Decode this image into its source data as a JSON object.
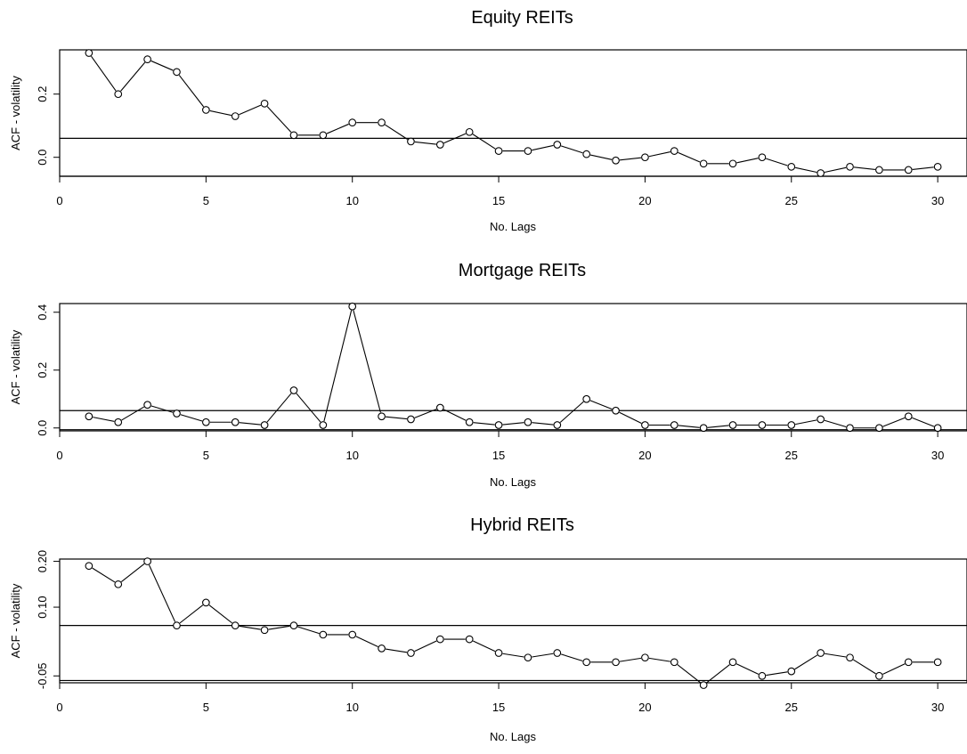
{
  "chart_data": [
    {
      "type": "line",
      "title": "Equity REITs",
      "xlabel": "No. Lags",
      "ylabel": "ACF - volatility",
      "x": [
        1,
        2,
        3,
        4,
        5,
        6,
        7,
        8,
        9,
        10,
        11,
        12,
        13,
        14,
        15,
        16,
        17,
        18,
        19,
        20,
        21,
        22,
        23,
        24,
        25,
        26,
        27,
        28,
        29,
        30
      ],
      "values": [
        0.33,
        0.2,
        0.31,
        0.27,
        0.15,
        0.13,
        0.17,
        0.07,
        0.07,
        0.11,
        0.11,
        0.05,
        0.04,
        0.08,
        0.02,
        0.02,
        0.04,
        0.01,
        -0.01,
        0.0,
        0.02,
        -0.02,
        -0.02,
        0.0,
        -0.03,
        -0.05,
        -0.03,
        -0.04,
        -0.04,
        -0.03
      ],
      "reference_lines": [
        0.06,
        -0.06
      ],
      "xlim": [
        0,
        31
      ],
      "ylim": [
        -0.06,
        0.34
      ],
      "xticks": [
        "0",
        "5",
        "10",
        "15",
        "20",
        "25",
        "30"
      ],
      "yticks": [
        "0.0",
        "0.2"
      ],
      "grid": false,
      "marker": "open-circle"
    },
    {
      "type": "line",
      "title": "Mortgage REITs",
      "xlabel": "No. Lags",
      "ylabel": "ACF - volatility",
      "x": [
        1,
        2,
        3,
        4,
        5,
        6,
        7,
        8,
        9,
        10,
        11,
        12,
        13,
        14,
        15,
        16,
        17,
        18,
        19,
        20,
        21,
        22,
        23,
        24,
        25,
        26,
        27,
        28,
        29,
        30
      ],
      "values": [
        0.04,
        0.02,
        0.08,
        0.05,
        0.02,
        0.02,
        0.01,
        0.13,
        0.01,
        0.42,
        0.04,
        0.03,
        0.07,
        0.02,
        0.01,
        0.02,
        0.01,
        0.1,
        0.06,
        0.01,
        0.01,
        0.0,
        0.01,
        0.01,
        0.01,
        0.03,
        0.0,
        0.0,
        0.04,
        0.0
      ],
      "reference_lines": [
        0.06,
        -0.006
      ],
      "xlim": [
        0,
        31
      ],
      "ylim": [
        -0.01,
        0.43
      ],
      "xticks": [
        "0",
        "5",
        "10",
        "15",
        "20",
        "25",
        "30"
      ],
      "yticks": [
        "0.0",
        "0.2",
        "0.4"
      ],
      "grid": false,
      "marker": "open-circle"
    },
    {
      "type": "line",
      "title": "Hybrid REITs",
      "xlabel": "No. Lags",
      "ylabel": "ACF - volatility",
      "x": [
        1,
        2,
        3,
        4,
        5,
        6,
        7,
        8,
        9,
        10,
        11,
        12,
        13,
        14,
        15,
        16,
        17,
        18,
        19,
        20,
        21,
        22,
        23,
        24,
        25,
        26,
        27,
        28,
        29,
        30
      ],
      "values": [
        0.19,
        0.15,
        0.2,
        0.06,
        0.11,
        0.06,
        0.05,
        0.06,
        0.04,
        0.04,
        0.01,
        0.0,
        0.03,
        0.03,
        0.0,
        -0.01,
        0.0,
        -0.02,
        -0.02,
        -0.01,
        -0.02,
        -0.07,
        -0.02,
        -0.05,
        -0.04,
        0.0,
        -0.01,
        -0.05,
        -0.02,
        -0.02
      ],
      "reference_lines": [
        0.06,
        -0.06
      ],
      "xlim": [
        0,
        31
      ],
      "ylim": [
        -0.065,
        0.205
      ],
      "xticks": [
        "0",
        "5",
        "10",
        "15",
        "20",
        "25",
        "30"
      ],
      "yticks": [
        "-0.05",
        "0.10",
        "0.20"
      ],
      "grid": false,
      "marker": "open-circle"
    }
  ]
}
